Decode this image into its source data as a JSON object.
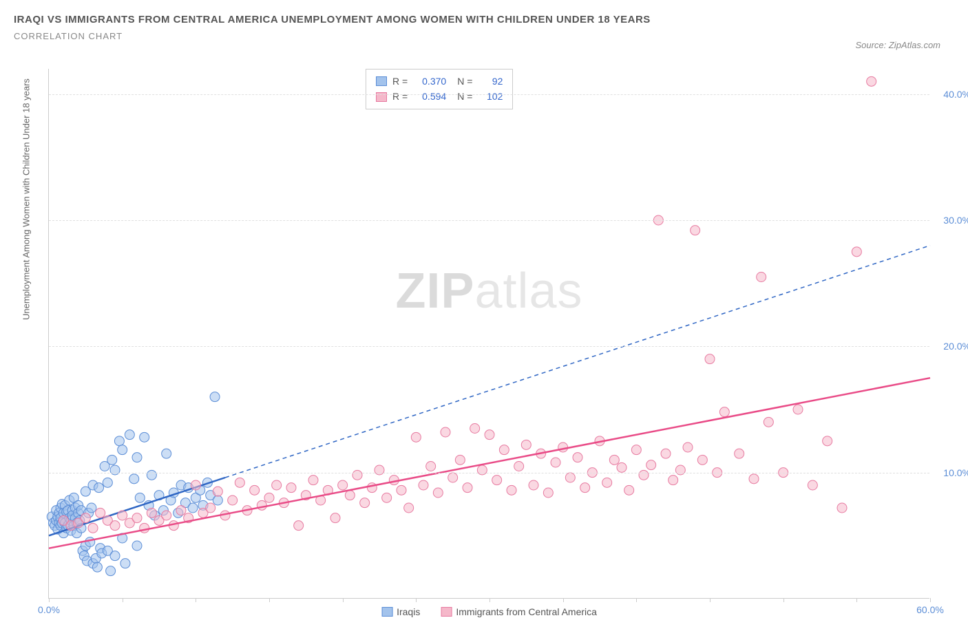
{
  "title": "IRAQI VS IMMIGRANTS FROM CENTRAL AMERICA UNEMPLOYMENT AMONG WOMEN WITH CHILDREN UNDER 18 YEARS",
  "subtitle": "CORRELATION CHART",
  "source": "Source: ZipAtlas.com",
  "watermark_bold": "ZIP",
  "watermark_light": "atlas",
  "chart": {
    "type": "scatter",
    "xmin": 0,
    "xmax": 60,
    "ymin": 0,
    "ymax": 42,
    "xtick_step": 5,
    "xticks_labeled": [
      {
        "v": 0,
        "label": "0.0%"
      },
      {
        "v": 60,
        "label": "60.0%"
      }
    ],
    "yticks": [
      {
        "v": 10,
        "label": "10.0%"
      },
      {
        "v": 20,
        "label": "20.0%"
      },
      {
        "v": 30,
        "label": "30.0%"
      },
      {
        "v": 40,
        "label": "40.0%"
      }
    ],
    "ylabel": "Unemployment Among Women with Children Under 18 years",
    "grid_color": "#e0e0e0",
    "background_color": "#ffffff",
    "marker_radius": 7,
    "marker_opacity": 0.55,
    "series": [
      {
        "id": "iraqis",
        "label": "Iraqis",
        "color_fill": "#a3c3ec",
        "color_stroke": "#5b8dd6",
        "trend_color": "#2f66c4",
        "trend_width": 2.5,
        "trend_dash_after_x": 12,
        "R": "0.370",
        "N": "92",
        "trend": {
          "x1": 0,
          "y1": 5.0,
          "x2": 60,
          "y2": 28.0
        },
        "points": [
          [
            0.2,
            6.5
          ],
          [
            0.3,
            6.0
          ],
          [
            0.4,
            5.8
          ],
          [
            0.5,
            7.0
          ],
          [
            0.5,
            6.2
          ],
          [
            0.6,
            6.5
          ],
          [
            0.6,
            5.5
          ],
          [
            0.7,
            6.0
          ],
          [
            0.7,
            6.8
          ],
          [
            0.8,
            7.2
          ],
          [
            0.8,
            5.8
          ],
          [
            0.8,
            6.4
          ],
          [
            0.9,
            6.0
          ],
          [
            0.9,
            7.5
          ],
          [
            1.0,
            6.2
          ],
          [
            1.0,
            5.2
          ],
          [
            1.0,
            6.8
          ],
          [
            1.1,
            7.4
          ],
          [
            1.1,
            6.0
          ],
          [
            1.2,
            5.6
          ],
          [
            1.2,
            6.9
          ],
          [
            1.3,
            7.0
          ],
          [
            1.3,
            5.8
          ],
          [
            1.4,
            6.4
          ],
          [
            1.4,
            7.8
          ],
          [
            1.5,
            6.2
          ],
          [
            1.5,
            5.4
          ],
          [
            1.6,
            7.0
          ],
          [
            1.6,
            6.6
          ],
          [
            1.7,
            5.8
          ],
          [
            1.7,
            8.0
          ],
          [
            1.8,
            6.4
          ],
          [
            1.8,
            7.2
          ],
          [
            1.9,
            6.0
          ],
          [
            1.9,
            5.2
          ],
          [
            2.0,
            6.8
          ],
          [
            2.0,
            7.4
          ],
          [
            2.1,
            6.2
          ],
          [
            2.2,
            5.6
          ],
          [
            2.2,
            7.0
          ],
          [
            2.3,
            3.8
          ],
          [
            2.4,
            3.4
          ],
          [
            2.5,
            8.5
          ],
          [
            2.5,
            4.2
          ],
          [
            2.6,
            3.0
          ],
          [
            2.7,
            6.8
          ],
          [
            2.8,
            4.5
          ],
          [
            2.9,
            7.2
          ],
          [
            3.0,
            2.8
          ],
          [
            3.0,
            9.0
          ],
          [
            3.2,
            3.2
          ],
          [
            3.3,
            2.5
          ],
          [
            3.4,
            8.8
          ],
          [
            3.5,
            4.0
          ],
          [
            3.6,
            3.6
          ],
          [
            3.8,
            10.5
          ],
          [
            4.0,
            9.2
          ],
          [
            4.0,
            3.8
          ],
          [
            4.2,
            2.2
          ],
          [
            4.3,
            11.0
          ],
          [
            4.5,
            3.4
          ],
          [
            4.5,
            10.2
          ],
          [
            4.8,
            12.5
          ],
          [
            5.0,
            4.8
          ],
          [
            5.0,
            11.8
          ],
          [
            5.2,
            2.8
          ],
          [
            5.5,
            13.0
          ],
          [
            5.8,
            9.5
          ],
          [
            6.0,
            11.2
          ],
          [
            6.0,
            4.2
          ],
          [
            6.2,
            8.0
          ],
          [
            6.5,
            12.8
          ],
          [
            6.8,
            7.4
          ],
          [
            7.0,
            9.8
          ],
          [
            7.2,
            6.6
          ],
          [
            7.5,
            8.2
          ],
          [
            7.8,
            7.0
          ],
          [
            8.0,
            11.5
          ],
          [
            8.3,
            7.8
          ],
          [
            8.5,
            8.4
          ],
          [
            8.8,
            6.8
          ],
          [
            9.0,
            9.0
          ],
          [
            9.3,
            7.6
          ],
          [
            9.5,
            8.8
          ],
          [
            9.8,
            7.2
          ],
          [
            10.0,
            8.0
          ],
          [
            10.3,
            8.6
          ],
          [
            10.5,
            7.4
          ],
          [
            10.8,
            9.2
          ],
          [
            11.0,
            8.2
          ],
          [
            11.3,
            16.0
          ],
          [
            11.5,
            7.8
          ]
        ]
      },
      {
        "id": "central-america",
        "label": "Immigrants from Central America",
        "color_fill": "#f5b8ca",
        "color_stroke": "#e77aa0",
        "trend_color": "#e94b87",
        "trend_width": 2.5,
        "trend_dash_after_x": 999,
        "R": "0.594",
        "N": "102",
        "trend": {
          "x1": 0,
          "y1": 4.0,
          "x2": 60,
          "y2": 17.5
        },
        "points": [
          [
            1.0,
            6.2
          ],
          [
            1.5,
            5.8
          ],
          [
            2.0,
            6.0
          ],
          [
            2.5,
            6.4
          ],
          [
            3.0,
            5.6
          ],
          [
            3.5,
            6.8
          ],
          [
            4.0,
            6.2
          ],
          [
            4.5,
            5.8
          ],
          [
            5.0,
            6.6
          ],
          [
            5.5,
            6.0
          ],
          [
            6.0,
            6.4
          ],
          [
            6.5,
            5.6
          ],
          [
            7.0,
            6.8
          ],
          [
            7.5,
            6.2
          ],
          [
            8.0,
            6.6
          ],
          [
            8.5,
            5.8
          ],
          [
            9.0,
            7.0
          ],
          [
            9.5,
            6.4
          ],
          [
            10.0,
            9.0
          ],
          [
            10.5,
            6.8
          ],
          [
            11.0,
            7.2
          ],
          [
            11.5,
            8.5
          ],
          [
            12.0,
            6.6
          ],
          [
            12.5,
            7.8
          ],
          [
            13.0,
            9.2
          ],
          [
            13.5,
            7.0
          ],
          [
            14.0,
            8.6
          ],
          [
            14.5,
            7.4
          ],
          [
            15.0,
            8.0
          ],
          [
            15.5,
            9.0
          ],
          [
            16.0,
            7.6
          ],
          [
            16.5,
            8.8
          ],
          [
            17.0,
            5.8
          ],
          [
            17.5,
            8.2
          ],
          [
            18.0,
            9.4
          ],
          [
            18.5,
            7.8
          ],
          [
            19.0,
            8.6
          ],
          [
            19.5,
            6.4
          ],
          [
            20.0,
            9.0
          ],
          [
            20.5,
            8.2
          ],
          [
            21.0,
            9.8
          ],
          [
            21.5,
            7.6
          ],
          [
            22.0,
            8.8
          ],
          [
            22.5,
            10.2
          ],
          [
            23.0,
            8.0
          ],
          [
            23.5,
            9.4
          ],
          [
            24.0,
            8.6
          ],
          [
            24.5,
            7.2
          ],
          [
            25.0,
            12.8
          ],
          [
            25.5,
            9.0
          ],
          [
            26.0,
            10.5
          ],
          [
            26.5,
            8.4
          ],
          [
            27.0,
            13.2
          ],
          [
            27.5,
            9.6
          ],
          [
            28.0,
            11.0
          ],
          [
            28.5,
            8.8
          ],
          [
            29.0,
            13.5
          ],
          [
            29.5,
            10.2
          ],
          [
            30.0,
            13.0
          ],
          [
            30.5,
            9.4
          ],
          [
            31.0,
            11.8
          ],
          [
            31.5,
            8.6
          ],
          [
            32.0,
            10.5
          ],
          [
            32.5,
            12.2
          ],
          [
            33.0,
            9.0
          ],
          [
            33.5,
            11.5
          ],
          [
            34.0,
            8.4
          ],
          [
            34.5,
            10.8
          ],
          [
            35.0,
            12.0
          ],
          [
            35.5,
            9.6
          ],
          [
            36.0,
            11.2
          ],
          [
            36.5,
            8.8
          ],
          [
            37.0,
            10.0
          ],
          [
            37.5,
            12.5
          ],
          [
            38.0,
            9.2
          ],
          [
            38.5,
            11.0
          ],
          [
            39.0,
            10.4
          ],
          [
            39.5,
            8.6
          ],
          [
            40.0,
            11.8
          ],
          [
            40.5,
            9.8
          ],
          [
            41.0,
            10.6
          ],
          [
            41.5,
            30.0
          ],
          [
            42.0,
            11.5
          ],
          [
            42.5,
            9.4
          ],
          [
            43.0,
            10.2
          ],
          [
            43.5,
            12.0
          ],
          [
            44.0,
            29.2
          ],
          [
            44.5,
            11.0
          ],
          [
            45.0,
            19.0
          ],
          [
            45.5,
            10.0
          ],
          [
            46.0,
            14.8
          ],
          [
            47.0,
            11.5
          ],
          [
            48.0,
            9.5
          ],
          [
            48.5,
            25.5
          ],
          [
            49.0,
            14.0
          ],
          [
            50.0,
            10.0
          ],
          [
            51.0,
            15.0
          ],
          [
            52.0,
            9.0
          ],
          [
            53.0,
            12.5
          ],
          [
            54.0,
            7.2
          ],
          [
            55.0,
            27.5
          ],
          [
            56.0,
            41.0
          ]
        ]
      }
    ]
  },
  "stat_box": {
    "rows": [
      {
        "swatch_fill": "#a3c3ec",
        "swatch_stroke": "#5b8dd6",
        "R_label": "R =",
        "R": "0.370",
        "N_label": "N =",
        "N": "92"
      },
      {
        "swatch_fill": "#f5b8ca",
        "swatch_stroke": "#e77aa0",
        "R_label": "R =",
        "R": "0.594",
        "N_label": "N =",
        "N": "102"
      }
    ]
  },
  "bottom_legend": [
    {
      "swatch_fill": "#a3c3ec",
      "swatch_stroke": "#5b8dd6",
      "label": "Iraqis"
    },
    {
      "swatch_fill": "#f5b8ca",
      "swatch_stroke": "#e77aa0",
      "label": "Immigrants from Central America"
    }
  ]
}
